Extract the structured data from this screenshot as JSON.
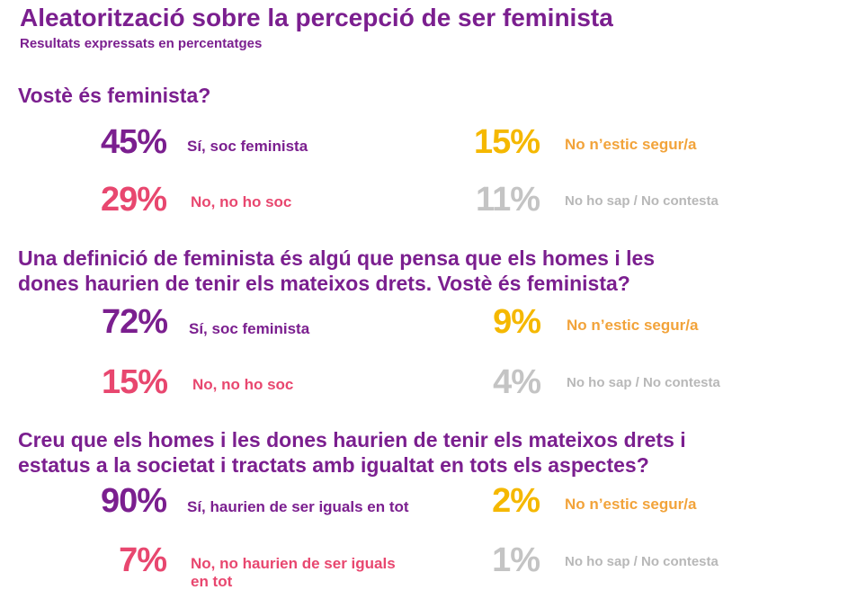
{
  "header": {
    "title": "Aleatorització sobre la percepció de ser feminista",
    "subtitle": "Resultats expressats en percentatges"
  },
  "chart_data": {
    "type": "table",
    "title": "Aleatorització sobre la percepció de ser feminista",
    "subtitle": "Resultats expressats en percentatges",
    "questions": [
      {
        "line1": "Vostè és feminista?",
        "line2": "",
        "answers": {
          "yes": {
            "value": "45%",
            "label1": "Sí, soc feminista",
            "label2": ""
          },
          "no": {
            "value": "29%",
            "label1": "No, no ho soc",
            "label2": ""
          },
          "unsure": {
            "value": "15%",
            "label": "No n’estic segur/a"
          },
          "na": {
            "value": "11%",
            "label": "No ho sap / No contesta"
          }
        }
      },
      {
        "line1": "Una definició de feminista és algú que pensa que els homes i les",
        "line2": "dones haurien de tenir els mateixos drets. Vostè és feminista?",
        "answers": {
          "yes": {
            "value": "72%",
            "label1": "Sí, soc feminista",
            "label2": ""
          },
          "no": {
            "value": "15%",
            "label1": "No, no ho soc",
            "label2": ""
          },
          "unsure": {
            "value": "9%",
            "label": "No n’estic segur/a"
          },
          "na": {
            "value": "4%",
            "label": "No ho sap / No contesta"
          }
        }
      },
      {
        "line1": "Creu que els homes i les dones haurien de tenir els mateixos drets i",
        "line2": "estatus a la societat i tractats amb igualtat en tots els aspectes?",
        "answers": {
          "yes": {
            "value": "90%",
            "label1": "Sí, haurien de ser iguals en tot",
            "label2": ""
          },
          "no": {
            "value": "7%",
            "label1": "No, no haurien de ser iguals",
            "label2": "en tot"
          },
          "unsure": {
            "value": "2%",
            "label": "No n’estic segur/a"
          },
          "na": {
            "value": "1%",
            "label": "No ho sap / No contesta"
          }
        }
      }
    ],
    "colors": {
      "title": "#7b1f8f",
      "yes": "#7b1f8f",
      "no": "#e8476f",
      "unsure": "#f5b800",
      "na": "#c4c4c4"
    }
  }
}
